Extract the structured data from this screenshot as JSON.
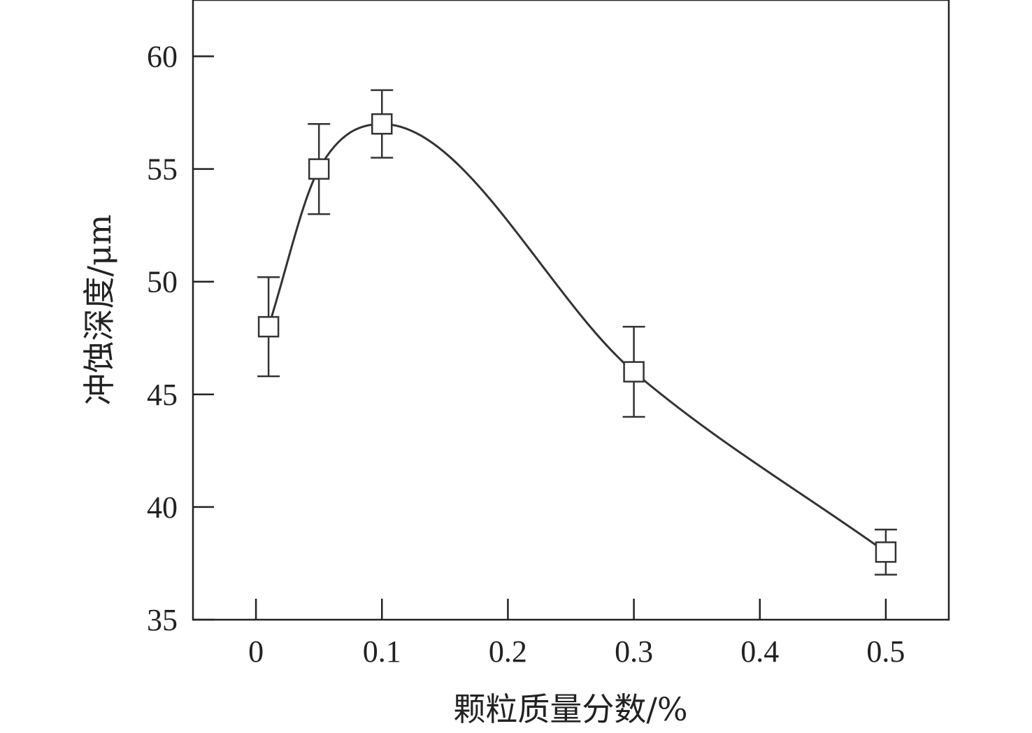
{
  "chart_data": {
    "type": "line",
    "xlabel": "颗粒质量分数/%",
    "ylabel": "冲蚀深度/μm",
    "xlim": [
      -0.05,
      0.55
    ],
    "ylim": [
      35,
      62.5
    ],
    "x_ticks": [
      0,
      0.1,
      0.2,
      0.3,
      0.4,
      0.5
    ],
    "x_tick_labels": [
      "0",
      "0.1",
      "0.2",
      "0.3",
      "0.4",
      "0.5"
    ],
    "y_ticks": [
      35,
      40,
      45,
      50,
      55,
      60
    ],
    "y_tick_labels": [
      "35",
      "40",
      "45",
      "50",
      "55",
      "60"
    ],
    "grid": false,
    "series": [
      {
        "marker": "open-square",
        "smooth": true,
        "x": [
          0.01,
          0.05,
          0.1,
          0.3,
          0.5
        ],
        "y": [
          48,
          55,
          57,
          46,
          38
        ],
        "error_low": [
          45.8,
          53,
          55.5,
          44,
          37
        ],
        "error_high": [
          50.2,
          57,
          58.5,
          48,
          39
        ]
      }
    ]
  }
}
